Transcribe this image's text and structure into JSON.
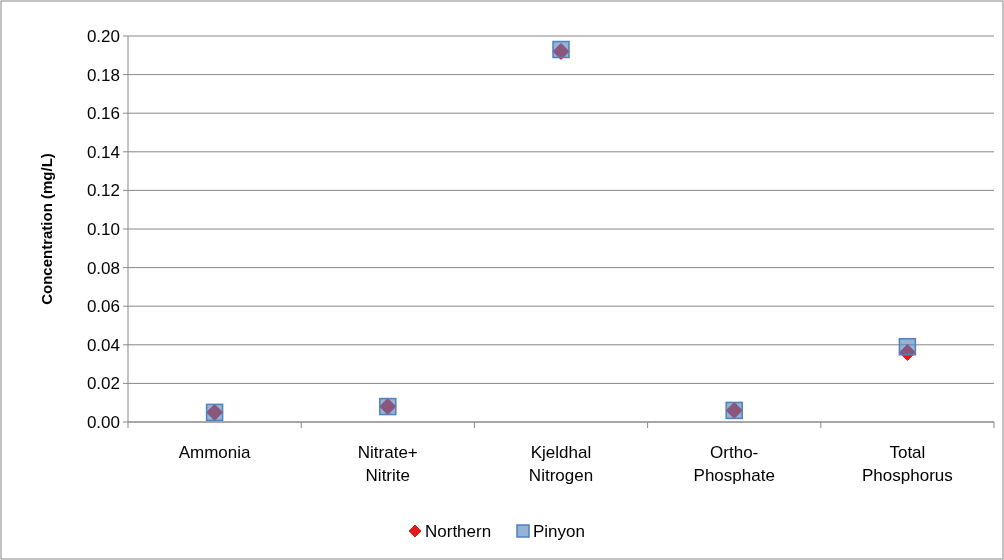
{
  "chart_data": {
    "type": "scatter",
    "ylabel": "Concentration (mg/L)",
    "categories": [
      "Ammonia",
      "Nitrate+\nNitrite",
      "Kjeldhal\nNitrogen",
      "Ortho-\nPhosphate",
      "Total\nPhosphorus"
    ],
    "series": [
      {
        "name": "Northern",
        "color": "#e31a1c",
        "marker": "diamond",
        "values": [
          0.005,
          0.008,
          0.192,
          0.006,
          0.036
        ]
      },
      {
        "name": "Pinyon",
        "color": "#4f81bd",
        "marker": "square",
        "values": [
          0.005,
          0.008,
          0.193,
          0.006,
          0.039
        ]
      }
    ],
    "ylim": [
      0,
      0.2
    ],
    "yticks": [
      {
        "value": 0,
        "label": "0.00"
      },
      {
        "value": 0.02,
        "label": "0.02"
      },
      {
        "value": 0.04,
        "label": "0.04"
      },
      {
        "value": 0.06,
        "label": "0.06"
      },
      {
        "value": 0.08,
        "label": "0.08"
      },
      {
        "value": 0.1,
        "label": "0.10"
      },
      {
        "value": 0.12,
        "label": "0.12"
      },
      {
        "value": 0.14,
        "label": "0.14"
      },
      {
        "value": 0.16,
        "label": "0.16"
      },
      {
        "value": 0.18,
        "label": "0.18"
      },
      {
        "value": 0.2,
        "label": "0.20"
      }
    ],
    "grid": "y",
    "legend": "bottom"
  }
}
